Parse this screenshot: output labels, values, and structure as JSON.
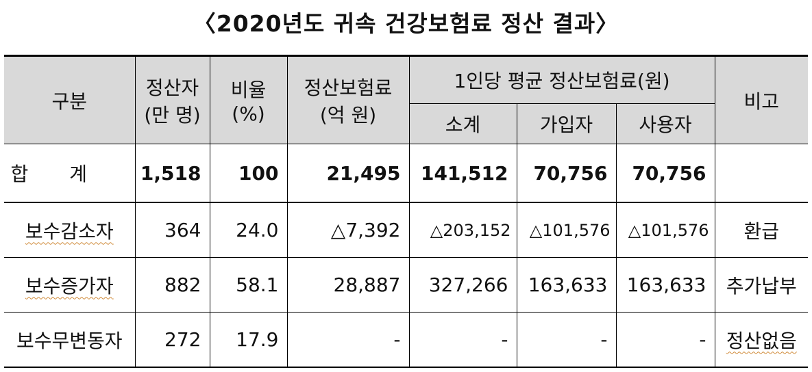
{
  "title": "〈2020년도 귀속 건강보험료 정산 결과〉",
  "header": {
    "category": "구분",
    "settlers_line1": "정산자",
    "settlers_line2": "(만 명)",
    "ratio_line1": "비율",
    "ratio_line2": "(%)",
    "premium_line1": "정산보험료",
    "premium_line2": "(억 원)",
    "per_person": "1인당 평균 정산보험료(원)",
    "subtotal": "소계",
    "subscriber": "가입자",
    "employer": "사용자",
    "remarks": "비고"
  },
  "total": {
    "label": "합계",
    "settlers": "1,518",
    "ratio": "100",
    "premium": "21,495",
    "subtotal": "141,512",
    "subscriber": "70,756",
    "employer": "70,756",
    "remarks": ""
  },
  "rows": [
    {
      "label": "보수감소자",
      "settlers": "364",
      "ratio": "24.0",
      "premium": "△7,392",
      "subtotal": "△203,152",
      "subscriber": "△101,576",
      "employer": "△101,576",
      "remarks": "환급"
    },
    {
      "label": "보수증가자",
      "settlers": "882",
      "ratio": "58.1",
      "premium": "28,887",
      "subtotal": "327,266",
      "subscriber": "163,633",
      "employer": "163,633",
      "remarks": "추가납부"
    },
    {
      "label": "보수무변동자",
      "settlers": "272",
      "ratio": "17.9",
      "premium": "-",
      "subtotal": "-",
      "subscriber": "-",
      "employer": "-",
      "remarks": "정산없음"
    }
  ]
}
